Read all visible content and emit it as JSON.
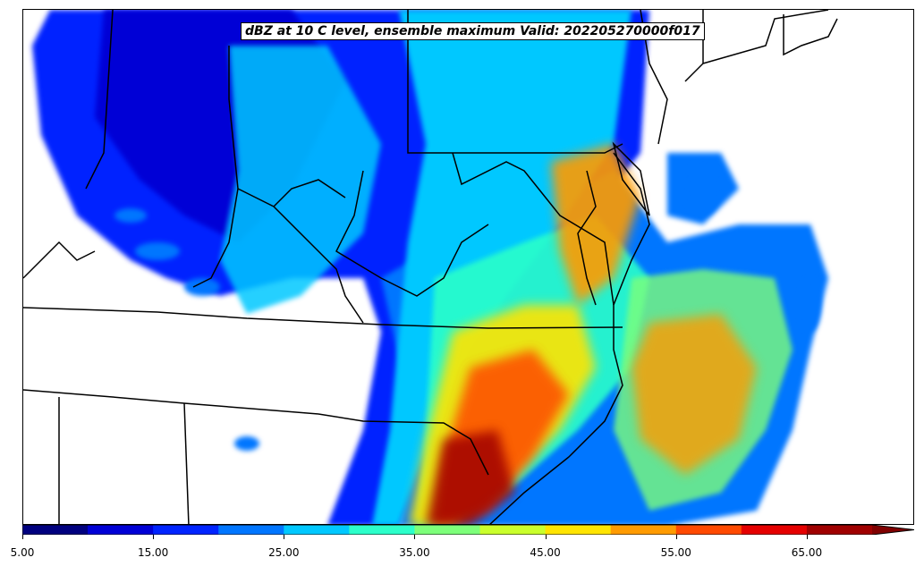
{
  "title": "dBZ at 10 C level, ensemble maximum Valid: 202205270000f017",
  "colorbar": {
    "tick_labels": [
      "5.00",
      "15.00",
      "25.00",
      "35.00",
      "45.00",
      "55.00",
      "65.00"
    ],
    "colors": [
      "#00007f",
      "#0000d6",
      "#0024ff",
      "#0076ff",
      "#00c8ff",
      "#2cffca",
      "#7dff7a",
      "#caff2c",
      "#ffe400",
      "#ff9b00",
      "#ff4a00",
      "#e50000",
      "#a00000",
      "#800000"
    ],
    "extend": "max"
  }
}
